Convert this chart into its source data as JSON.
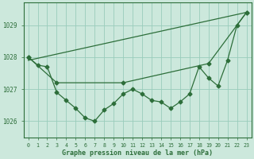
{
  "bg_color": "#cce8dc",
  "grid_color": "#99ccbb",
  "line_color": "#2d6e3a",
  "ylabel_values": [
    1026,
    1027,
    1028,
    1029
  ],
  "xlabel_values": [
    0,
    1,
    2,
    3,
    4,
    5,
    6,
    7,
    8,
    9,
    10,
    11,
    12,
    13,
    14,
    15,
    16,
    17,
    18,
    19,
    20,
    21,
    22,
    23
  ],
  "xlabel_label": "Graphe pression niveau de la mer (hPa)",
  "series1_x": [
    0,
    1,
    2,
    3,
    4,
    5,
    6,
    7,
    8,
    9,
    10,
    11,
    12,
    13,
    14,
    15,
    16,
    17,
    18,
    19,
    20,
    21,
    22,
    23
  ],
  "series1_y": [
    1028.0,
    1027.75,
    1027.7,
    1026.9,
    1026.65,
    1026.4,
    1026.1,
    1026.0,
    1026.35,
    1026.55,
    1026.85,
    1027.0,
    1026.85,
    1026.65,
    1026.6,
    1026.4,
    1026.6,
    1026.85,
    1027.7,
    1027.35,
    1027.1,
    1027.9,
    1029.0,
    1029.4
  ],
  "series2_x": [
    0,
    23
  ],
  "series2_y": [
    1027.9,
    1029.4
  ],
  "series3_x": [
    0,
    3,
    10,
    19,
    23
  ],
  "series3_y": [
    1028.0,
    1027.2,
    1027.2,
    1027.8,
    1029.4
  ],
  "xlim": [
    -0.5,
    23.5
  ],
  "ylim": [
    1025.5,
    1029.7
  ],
  "figsize": [
    3.2,
    2.0
  ],
  "dpi": 100
}
